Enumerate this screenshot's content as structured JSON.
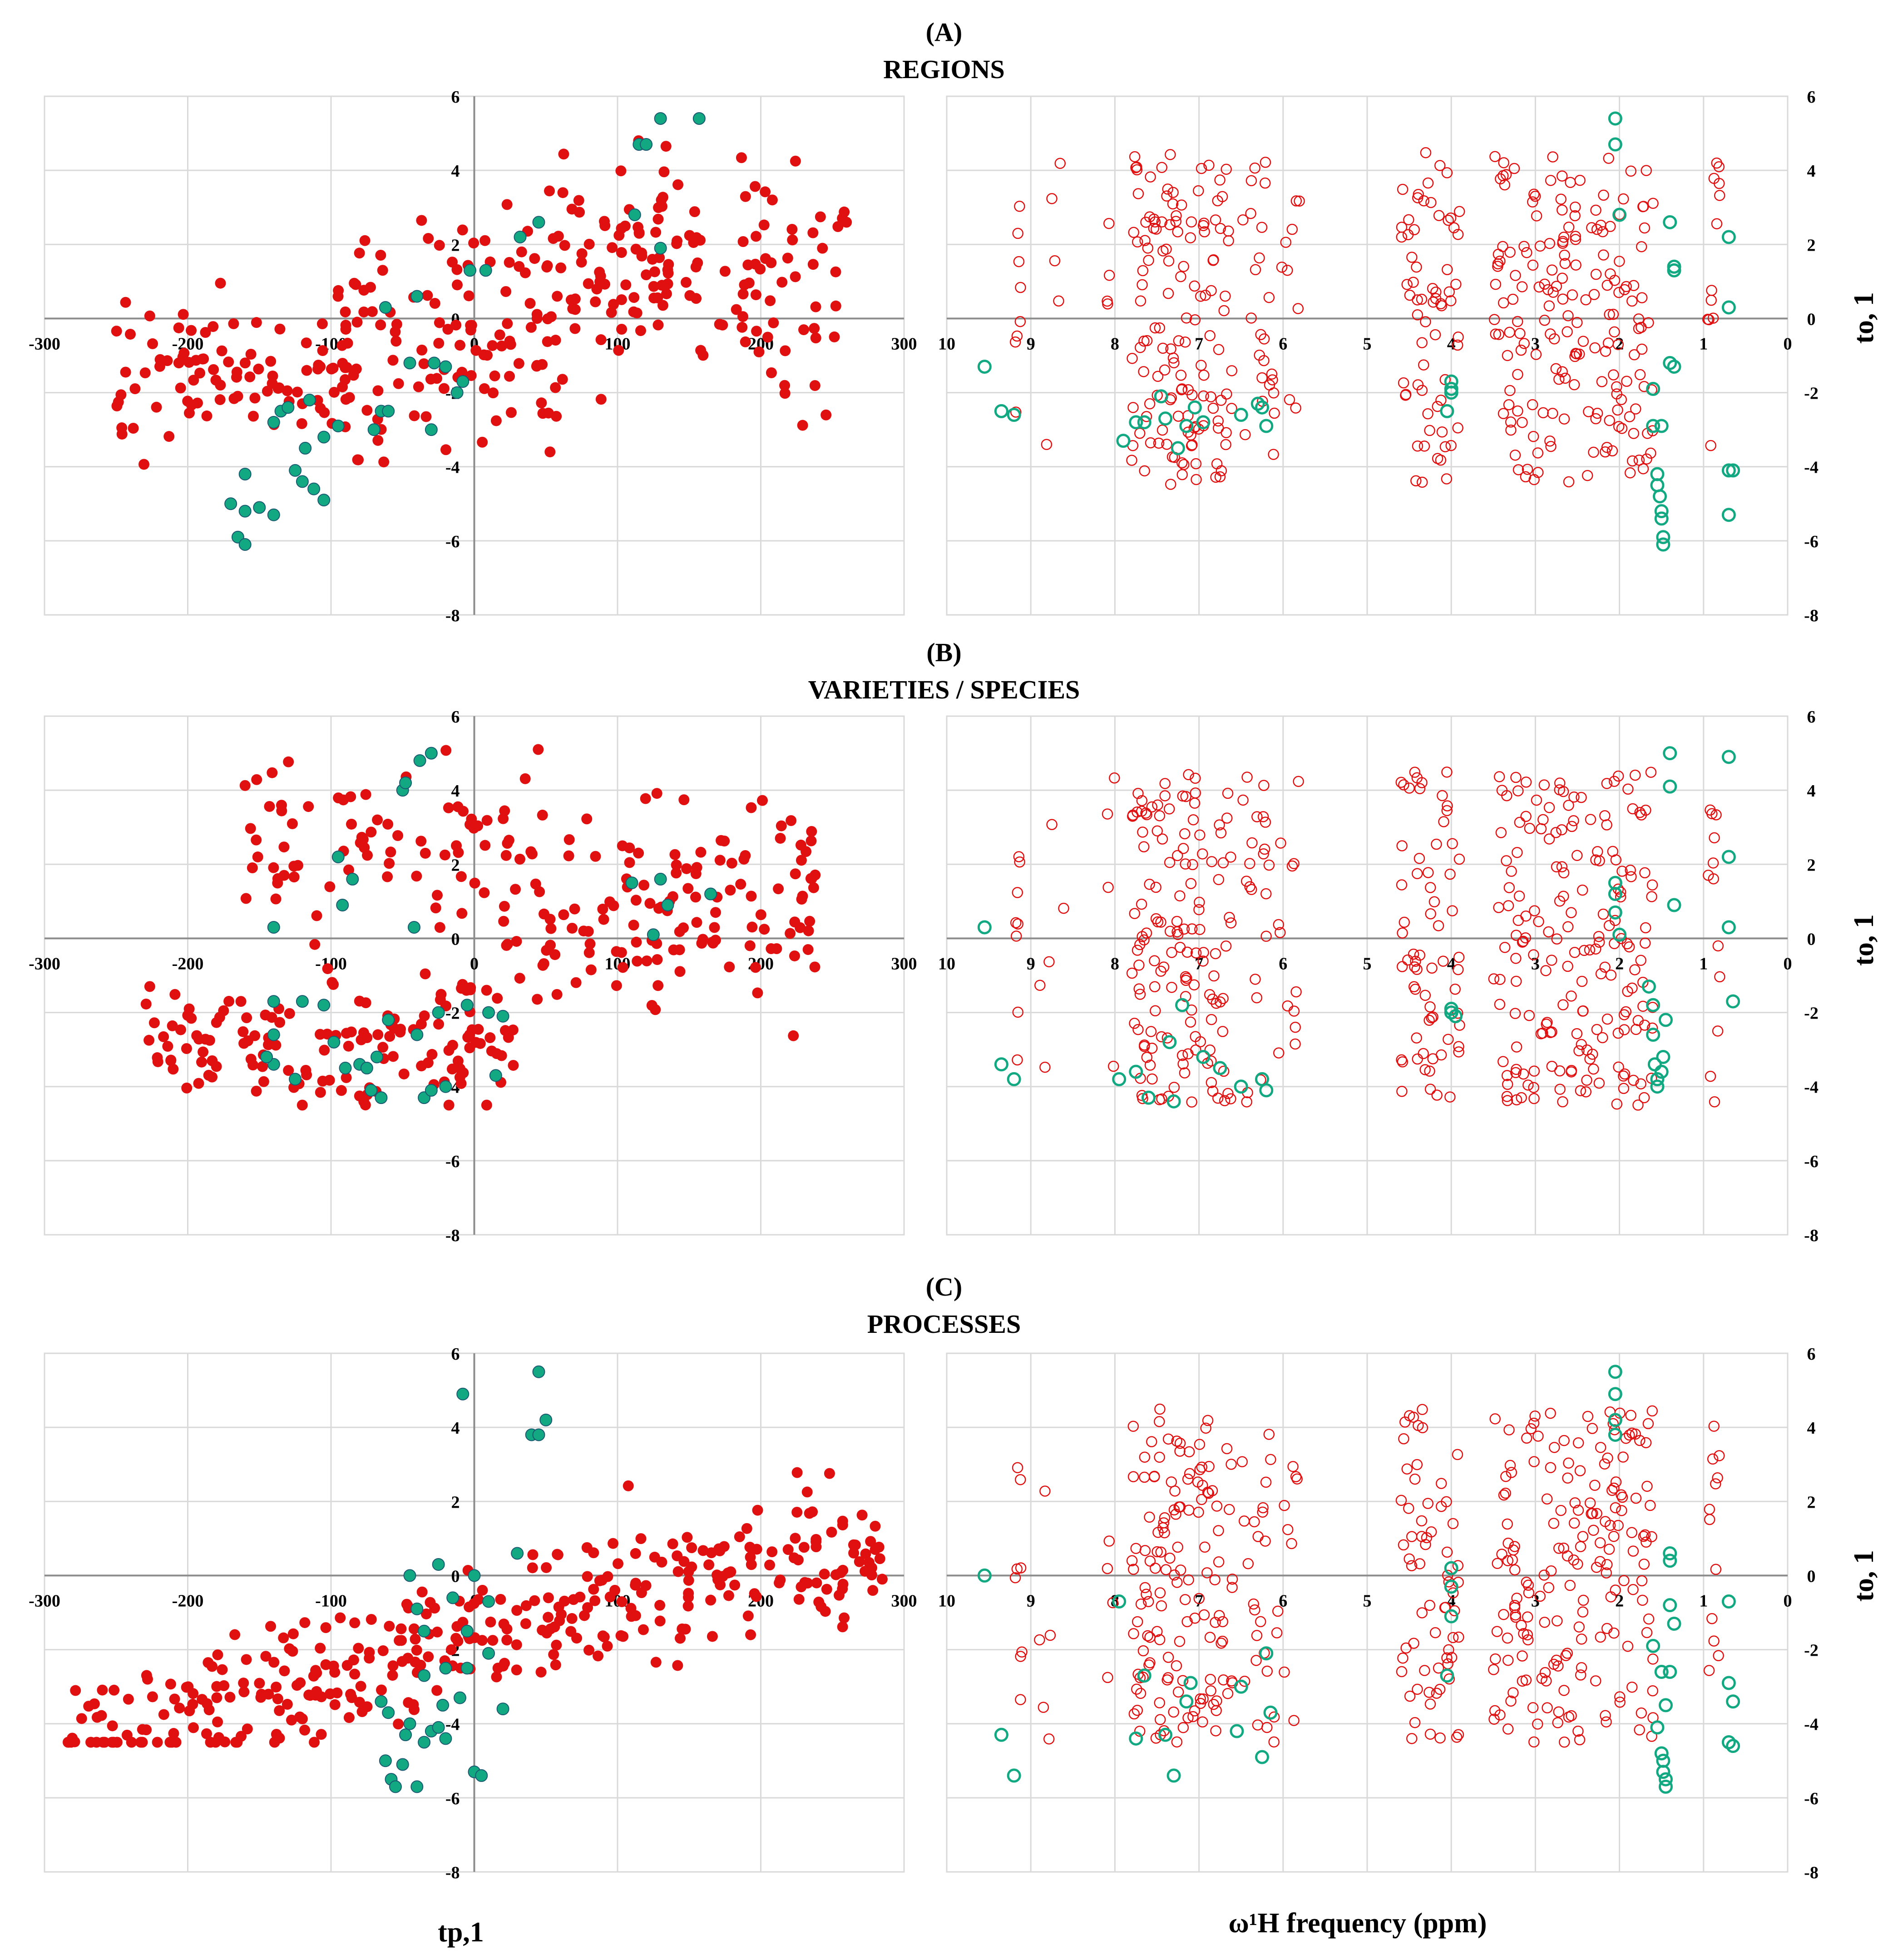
{
  "figure": {
    "colors": {
      "class1": "#e01010",
      "class2": "#12a882",
      "class2_outline": "#1a5a70",
      "grid": "#d9d9d9",
      "axis": "#8c8c8c"
    },
    "scores_xlabel": "tp,1",
    "loadings_xlabel": "ω¹H frequency (ppm)",
    "yaxis_label": "to, 1"
  },
  "chart_data": [
    {
      "panel": "A",
      "type": "scatter",
      "label": "(A)",
      "title": "REGIONS",
      "scores": {
        "xlim": [
          -300,
          300
        ],
        "ylim": [
          -8,
          6
        ],
        "xticks": [
          -300,
          -200,
          -100,
          0,
          100,
          200,
          300
        ],
        "yticks": [
          -8,
          -6,
          -4,
          -2,
          0,
          2,
          4,
          6
        ],
        "class2_points": [
          [
            -170,
            -5
          ],
          [
            -165,
            -5.9
          ],
          [
            -160,
            -5.2
          ],
          [
            -160,
            -6.1
          ],
          [
            -160,
            -4.2
          ],
          [
            -150,
            -5.1
          ],
          [
            -140,
            -5.3
          ],
          [
            -140,
            -2.8
          ],
          [
            -135,
            -2.5
          ],
          [
            -130,
            -2.4
          ],
          [
            -125,
            -4.1
          ],
          [
            -120,
            -4.4
          ],
          [
            -118,
            -3.5
          ],
          [
            -115,
            -2.2
          ],
          [
            -112,
            -4.6
          ],
          [
            -105,
            -3.2
          ],
          [
            -105,
            -4.9
          ],
          [
            -95,
            -2.9
          ],
          [
            -70,
            -3
          ],
          [
            -65,
            -2.5
          ],
          [
            -60,
            -2.5
          ],
          [
            -62,
            0.3
          ],
          [
            -45,
            -1.2
          ],
          [
            -40,
            0.6
          ],
          [
            -30,
            -3
          ],
          [
            -28,
            -1.2
          ],
          [
            -20,
            -1.3
          ],
          [
            -12,
            -2
          ],
          [
            -8,
            -1.7
          ],
          [
            -3,
            1.3
          ],
          [
            8,
            1.3
          ],
          [
            32,
            2.2
          ],
          [
            45,
            2.6
          ],
          [
            112,
            2.8
          ],
          [
            115,
            4.7
          ],
          [
            120,
            4.7
          ],
          [
            130,
            5.4
          ],
          [
            157,
            5.4
          ],
          [
            130,
            1.9
          ]
        ]
      },
      "loadings": {
        "xlim": [
          10,
          0
        ],
        "ylim": [
          -8,
          6
        ],
        "xticks": [
          10,
          9,
          8,
          7,
          6,
          5,
          4,
          3,
          2,
          1,
          0
        ],
        "yticks": [
          -8,
          -6,
          -4,
          -2,
          0,
          2,
          4,
          6
        ],
        "class2_points": [
          [
            9.55,
            -1.3
          ],
          [
            9.35,
            -2.5
          ],
          [
            9.2,
            -2.6
          ],
          [
            7.9,
            -3.3
          ],
          [
            7.75,
            -2.8
          ],
          [
            7.65,
            -2.8
          ],
          [
            7.45,
            -2.1
          ],
          [
            7.4,
            -2.7
          ],
          [
            7.25,
            -3.5
          ],
          [
            7.15,
            -2.9
          ],
          [
            7.05,
            -2.4
          ],
          [
            6.95,
            -2.8
          ],
          [
            6.5,
            -2.6
          ],
          [
            6.3,
            -2.3
          ],
          [
            6.25,
            -2.4
          ],
          [
            6.2,
            -2.9
          ],
          [
            4,
            -1.7
          ],
          [
            4,
            -2
          ],
          [
            4,
            -1.9
          ],
          [
            4.05,
            -2.5
          ],
          [
            2.05,
            5.4
          ],
          [
            2.05,
            4.7
          ],
          [
            2,
            2.8
          ],
          [
            1.6,
            -1.9
          ],
          [
            1.6,
            -2.9
          ],
          [
            1.55,
            -4.2
          ],
          [
            1.55,
            -4.5
          ],
          [
            1.52,
            -4.8
          ],
          [
            1.5,
            -5.2
          ],
          [
            1.5,
            -5.4
          ],
          [
            1.48,
            -5.9
          ],
          [
            1.48,
            -6.1
          ],
          [
            1.5,
            -2.9
          ],
          [
            1.4,
            2.6
          ],
          [
            1.35,
            1.4
          ],
          [
            1.35,
            1.3
          ],
          [
            1.4,
            -1.2
          ],
          [
            1.35,
            -1.3
          ],
          [
            0.7,
            2.2
          ],
          [
            0.7,
            0.3
          ],
          [
            0.7,
            -4.1
          ],
          [
            0.7,
            -5.3
          ],
          [
            0.65,
            -4.1
          ]
        ]
      }
    },
    {
      "panel": "B",
      "type": "scatter",
      "label": "(B)",
      "title": "VARIETIES / SPECIES",
      "scores": {
        "xlim": [
          -300,
          300
        ],
        "ylim": [
          -8,
          6
        ],
        "xticks": [
          -300,
          -200,
          -100,
          0,
          100,
          200,
          300
        ],
        "yticks": [
          -8,
          -6,
          -4,
          -2,
          0,
          2,
          4,
          6
        ],
        "class2_points": [
          [
            -140,
            -2.6
          ],
          [
            -140,
            -3.4
          ],
          [
            -145,
            -3.2
          ],
          [
            -140,
            0.3
          ],
          [
            -140,
            -1.7
          ],
          [
            -125,
            -3.8
          ],
          [
            -120,
            -1.7
          ],
          [
            -105,
            -1.8
          ],
          [
            -98,
            -2.8
          ],
          [
            -95,
            2.2
          ],
          [
            -92,
            0.9
          ],
          [
            -90,
            -3.5
          ],
          [
            -85,
            1.6
          ],
          [
            -80,
            -3.4
          ],
          [
            -75,
            -3.5
          ],
          [
            -72,
            -4.1
          ],
          [
            -68,
            -3.2
          ],
          [
            -65,
            -4.3
          ],
          [
            -60,
            -2.2
          ],
          [
            -50,
            4
          ],
          [
            -48,
            4.2
          ],
          [
            -42,
            0.3
          ],
          [
            -40,
            -2.6
          ],
          [
            -38,
            4.8
          ],
          [
            -35,
            -4.3
          ],
          [
            -30,
            5
          ],
          [
            -30,
            -4.1
          ],
          [
            -25,
            -2
          ],
          [
            -20,
            -4
          ],
          [
            -5,
            -1.8
          ],
          [
            10,
            -2
          ],
          [
            15,
            -3.7
          ],
          [
            20,
            -2.1
          ],
          [
            110,
            1.5
          ],
          [
            130,
            1.6
          ],
          [
            135,
            0.9
          ],
          [
            165,
            1.2
          ],
          [
            125,
            0.1
          ]
        ]
      },
      "loadings": {
        "xlim": [
          10,
          0
        ],
        "ylim": [
          -8,
          6
        ],
        "xticks": [
          10,
          9,
          8,
          7,
          6,
          5,
          4,
          3,
          2,
          1,
          0
        ],
        "yticks": [
          -8,
          -6,
          -4,
          -2,
          0,
          2,
          4,
          6
        ],
        "class2_points": [
          [
            9.55,
            0.3
          ],
          [
            9.35,
            -3.4
          ],
          [
            9.2,
            -3.8
          ],
          [
            7.95,
            -3.8
          ],
          [
            7.75,
            -3.6
          ],
          [
            7.6,
            -4.3
          ],
          [
            7.35,
            -2.8
          ],
          [
            7.3,
            -4.4
          ],
          [
            7.2,
            -1.8
          ],
          [
            6.95,
            -3.2
          ],
          [
            6.75,
            -3.5
          ],
          [
            6.5,
            -4
          ],
          [
            6.25,
            -3.8
          ],
          [
            6.2,
            -4.1
          ],
          [
            4,
            -1.9
          ],
          [
            4,
            -2
          ],
          [
            3.95,
            -2.1
          ],
          [
            2.05,
            1.5
          ],
          [
            2.05,
            1.2
          ],
          [
            2.05,
            0.7
          ],
          [
            2,
            0.1
          ],
          [
            1.65,
            -1.3
          ],
          [
            1.6,
            -1.8
          ],
          [
            1.6,
            -2.6
          ],
          [
            1.58,
            -3.4
          ],
          [
            1.55,
            -3.8
          ],
          [
            1.55,
            -4
          ],
          [
            1.5,
            -3.6
          ],
          [
            1.48,
            -3.2
          ],
          [
            1.45,
            -2.2
          ],
          [
            1.4,
            5
          ],
          [
            1.4,
            4.1
          ],
          [
            1.35,
            0.9
          ],
          [
            0.7,
            4.9
          ],
          [
            0.7,
            2.2
          ],
          [
            0.7,
            0.3
          ],
          [
            0.65,
            -1.7
          ]
        ]
      }
    },
    {
      "panel": "C",
      "type": "scatter",
      "label": "(C)",
      "title": "PROCESSES",
      "scores": {
        "xlim": [
          -300,
          300
        ],
        "ylim": [
          -8,
          6
        ],
        "xticks": [
          -300,
          -200,
          -100,
          0,
          100,
          200,
          300
        ],
        "yticks": [
          -8,
          -6,
          -4,
          -2,
          0,
          2,
          4,
          6
        ],
        "class2_points": [
          [
            -65,
            -3.4
          ],
          [
            -60,
            -3.7
          ],
          [
            -62,
            -5
          ],
          [
            -58,
            -5.5
          ],
          [
            -55,
            -5.7
          ],
          [
            -50,
            -5.1
          ],
          [
            -48,
            -4.3
          ],
          [
            -45,
            -4
          ],
          [
            -45,
            0
          ],
          [
            -40,
            -0.9
          ],
          [
            -40,
            -5.7
          ],
          [
            -35,
            -1.5
          ],
          [
            -35,
            -2.7
          ],
          [
            -35,
            -4.5
          ],
          [
            -30,
            -4.2
          ],
          [
            -25,
            0.3
          ],
          [
            -25,
            -4.1
          ],
          [
            -22,
            -3.5
          ],
          [
            -20,
            -2.5
          ],
          [
            -20,
            -4.4
          ],
          [
            -15,
            -0.6
          ],
          [
            -10,
            -3.3
          ],
          [
            -8,
            4.9
          ],
          [
            -5,
            -1.5
          ],
          [
            -5,
            -2.5
          ],
          [
            0,
            0
          ],
          [
            0,
            -5.3
          ],
          [
            5,
            -5.4
          ],
          [
            10,
            -2.1
          ],
          [
            10,
            -0.7
          ],
          [
            20,
            -3.6
          ],
          [
            30,
            0.6
          ],
          [
            40,
            3.8
          ],
          [
            45,
            5.5
          ],
          [
            45,
            3.8
          ],
          [
            50,
            4.2
          ]
        ]
      },
      "loadings": {
        "xlim": [
          10,
          0
        ],
        "ylim": [
          -8,
          6
        ],
        "xticks": [
          10,
          9,
          8,
          7,
          6,
          5,
          4,
          3,
          2,
          1,
          0
        ],
        "yticks": [
          -8,
          -6,
          -4,
          -2,
          0,
          2,
          4,
          6
        ],
        "class2_points": [
          [
            9.55,
            0
          ],
          [
            9.35,
            -4.3
          ],
          [
            9.2,
            -5.4
          ],
          [
            7.95,
            -0.7
          ],
          [
            7.75,
            -4.4
          ],
          [
            7.65,
            -2.7
          ],
          [
            7.4,
            -4.3
          ],
          [
            7.3,
            -5.4
          ],
          [
            7.15,
            -3.4
          ],
          [
            7.1,
            -2.9
          ],
          [
            6.55,
            -4.2
          ],
          [
            6.5,
            -3
          ],
          [
            6.25,
            -4.9
          ],
          [
            6.2,
            -2.1
          ],
          [
            6.15,
            -3.7
          ],
          [
            4,
            0.2
          ],
          [
            4,
            -0.3
          ],
          [
            4,
            -1.1
          ],
          [
            4.05,
            -2.7
          ],
          [
            2.05,
            5.5
          ],
          [
            2.05,
            4.9
          ],
          [
            2.05,
            4.2
          ],
          [
            2.05,
            3.8
          ],
          [
            1.6,
            -1.9
          ],
          [
            1.55,
            -4.1
          ],
          [
            1.5,
            -4.8
          ],
          [
            1.48,
            -5
          ],
          [
            1.48,
            -5.3
          ],
          [
            1.45,
            -5.5
          ],
          [
            1.45,
            -5.7
          ],
          [
            1.5,
            -2.6
          ],
          [
            1.45,
            -3.5
          ],
          [
            1.4,
            0.6
          ],
          [
            1.4,
            0.4
          ],
          [
            1.4,
            -0.8
          ],
          [
            1.35,
            -1.3
          ],
          [
            1.4,
            -2.6
          ],
          [
            0.7,
            -0.7
          ],
          [
            0.7,
            -2.9
          ],
          [
            0.65,
            -3.4
          ],
          [
            0.7,
            -4.5
          ],
          [
            0.65,
            -4.6
          ]
        ]
      }
    }
  ]
}
